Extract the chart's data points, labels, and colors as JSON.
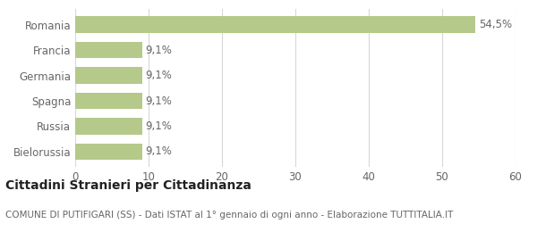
{
  "categories": [
    "Bielorussia",
    "Russia",
    "Spagna",
    "Germania",
    "Francia",
    "Romania"
  ],
  "values": [
    9.1,
    9.1,
    9.1,
    9.1,
    9.1,
    54.5
  ],
  "labels": [
    "9,1%",
    "9,1%",
    "9,1%",
    "9,1%",
    "9,1%",
    "54,5%"
  ],
  "bar_color": "#b5c98a",
  "background_color": "#ffffff",
  "grid_color": "#d8d8d8",
  "text_color": "#666666",
  "xlim": [
    0,
    60
  ],
  "xticks": [
    0,
    10,
    20,
    30,
    40,
    50,
    60
  ],
  "title_bold": "Cittadini Stranieri per Cittadinanza",
  "subtitle": "COMUNE DI PUTIFIGARI (SS) - Dati ISTAT al 1° gennaio di ogni anno - Elaborazione TUTTITALIA.IT",
  "title_fontsize": 10,
  "subtitle_fontsize": 7.5,
  "label_fontsize": 8.5,
  "tick_fontsize": 8.5,
  "ytick_fontsize": 8.5
}
